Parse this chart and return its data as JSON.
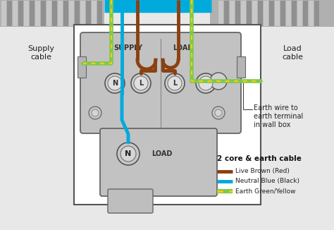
{
  "bg_color": "#e8e8e8",
  "white": "#ffffff",
  "live_color": "#8B4010",
  "neutral_color": "#00AADD",
  "earth_green": "#7EC850",
  "earth_yellow": "#F5D000",
  "box_gray": "#b8b8b8",
  "box_edge": "#666666",
  "wall_gray": "#aaaaaa",
  "title": "2 core & earth cable",
  "legend_live": "Live Brown (Red)",
  "legend_neutral": "Neutral Blue (Black)",
  "legend_earth": "Earth Green/Yellow",
  "supply_label": "Supply\ncable",
  "load_label": "Load\ncable",
  "earth_label": "Earth wire to\nearth terminal\nin wall box"
}
